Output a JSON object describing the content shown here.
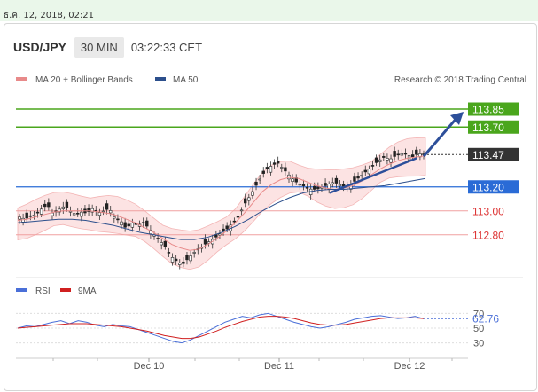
{
  "timestamp": "ธ.ค. 12, 2018, 02:21",
  "header": {
    "symbol": "USD/JPY",
    "timeframe": "30 MIN",
    "clock": "03:22:33 CET"
  },
  "legend": {
    "main": [
      {
        "name": "MA 20 + Bollinger Bands",
        "color": "#e88a8a"
      },
      {
        "name": "MA 50",
        "color": "#2c4f8c"
      }
    ],
    "copyright": "Research © 2018 Trading Central",
    "rsi": [
      {
        "name": "RSI",
        "color": "#4a6fd8"
      },
      {
        "name": "9MA",
        "color": "#d02020"
      }
    ]
  },
  "chart_data": [
    {
      "type": "candlestick",
      "title": "USD/JPY",
      "ylim": [
        112.45,
        114.05
      ],
      "x_tick_labels": [
        "Dec 10",
        "Dec 11",
        "Dec 12"
      ],
      "levels": [
        {
          "value": 113.85,
          "label": "113.85",
          "color": "#4aa61c",
          "kind": "resistance"
        },
        {
          "value": 113.7,
          "label": "113.70",
          "color": "#4aa61c",
          "kind": "resistance"
        },
        {
          "value": 113.47,
          "label": "113.47",
          "color": "#333333",
          "kind": "last"
        },
        {
          "value": 113.2,
          "label": "113.20",
          "color": "#2a6bd6",
          "kind": "pivot"
        },
        {
          "value": 113.0,
          "label": "113.00",
          "color": "#e05050",
          "kind": "support"
        },
        {
          "value": 112.8,
          "label": "112.80",
          "color": "#e05050",
          "kind": "support"
        }
      ],
      "close_path": [
        112.95,
        112.93,
        112.96,
        112.97,
        113.02,
        113.05,
        112.97,
        113.01,
        113.04,
        113.0,
        112.97,
        112.99,
        112.98,
        113.02,
        112.98,
        113.0,
        113.02,
        112.94,
        112.92,
        112.85,
        112.9,
        112.88,
        112.9,
        112.86,
        112.8,
        112.75,
        112.7,
        112.62,
        112.58,
        112.55,
        112.6,
        112.65,
        112.68,
        112.72,
        112.75,
        112.78,
        112.82,
        112.85,
        112.9,
        112.95,
        113.05,
        113.12,
        113.2,
        113.28,
        113.35,
        113.38,
        113.4,
        113.35,
        113.3,
        113.25,
        113.22,
        113.2,
        113.18,
        113.18,
        113.2,
        113.22,
        113.24,
        113.22,
        113.2,
        113.22,
        113.26,
        113.3,
        113.34,
        113.38,
        113.42,
        113.45,
        113.43,
        113.46,
        113.48,
        113.47,
        113.45,
        113.48,
        113.47
      ],
      "ma20_path": [
        112.92,
        112.93,
        112.95,
        112.97,
        112.99,
        113.0,
        113.0,
        113.0,
        113.0,
        112.99,
        112.98,
        112.96,
        112.93,
        112.9,
        112.86,
        112.82,
        112.77,
        112.72,
        112.69,
        112.67,
        112.68,
        112.72,
        112.77,
        112.83,
        112.9,
        112.98,
        113.07,
        113.16,
        113.22,
        113.26,
        113.28,
        113.27,
        113.24,
        113.21,
        113.19,
        113.18,
        113.19,
        113.21,
        113.25,
        113.3,
        113.35,
        113.39,
        113.42,
        113.44,
        113.45,
        113.46
      ],
      "ma50_path": [
        112.9,
        112.91,
        112.92,
        112.93,
        112.93,
        112.92,
        112.9,
        112.88,
        112.85,
        112.82,
        112.8,
        112.78,
        112.76,
        112.76,
        112.78,
        112.82,
        112.87,
        112.93,
        113.0,
        113.06,
        113.11,
        113.15,
        113.17,
        113.18,
        113.18,
        113.19,
        113.2,
        113.21,
        113.23,
        113.25,
        113.27
      ],
      "arrow": {
        "from_value": 113.47,
        "to_value": 113.85
      }
    },
    {
      "type": "line",
      "title": "RSI",
      "ylim": [
        20,
        80
      ],
      "y_ticks": [
        70,
        50,
        30
      ],
      "rsi_value_label": "62.76",
      "series": [
        {
          "name": "RSI",
          "values": [
            50,
            53,
            52,
            55,
            58,
            60,
            56,
            60,
            58,
            54,
            52,
            55,
            53,
            52,
            48,
            44,
            40,
            36,
            32,
            30,
            34,
            40,
            46,
            52,
            58,
            62,
            66,
            64,
            68,
            70,
            66,
            62,
            58,
            55,
            52,
            50,
            52,
            55,
            58,
            62,
            64,
            66,
            67,
            65,
            63,
            64,
            66,
            62.76
          ]
        },
        {
          "name": "9MA",
          "values": [
            50,
            51,
            52,
            53,
            54,
            55,
            56,
            56,
            56,
            55,
            54,
            53,
            52,
            50,
            48,
            46,
            43,
            40,
            38,
            36,
            36,
            38,
            42,
            46,
            51,
            55,
            59,
            62,
            65,
            66,
            66,
            65,
            63,
            60,
            57,
            55,
            54,
            54,
            55,
            57,
            59,
            61,
            63,
            64,
            64,
            64,
            64,
            63
          ]
        }
      ]
    }
  ]
}
